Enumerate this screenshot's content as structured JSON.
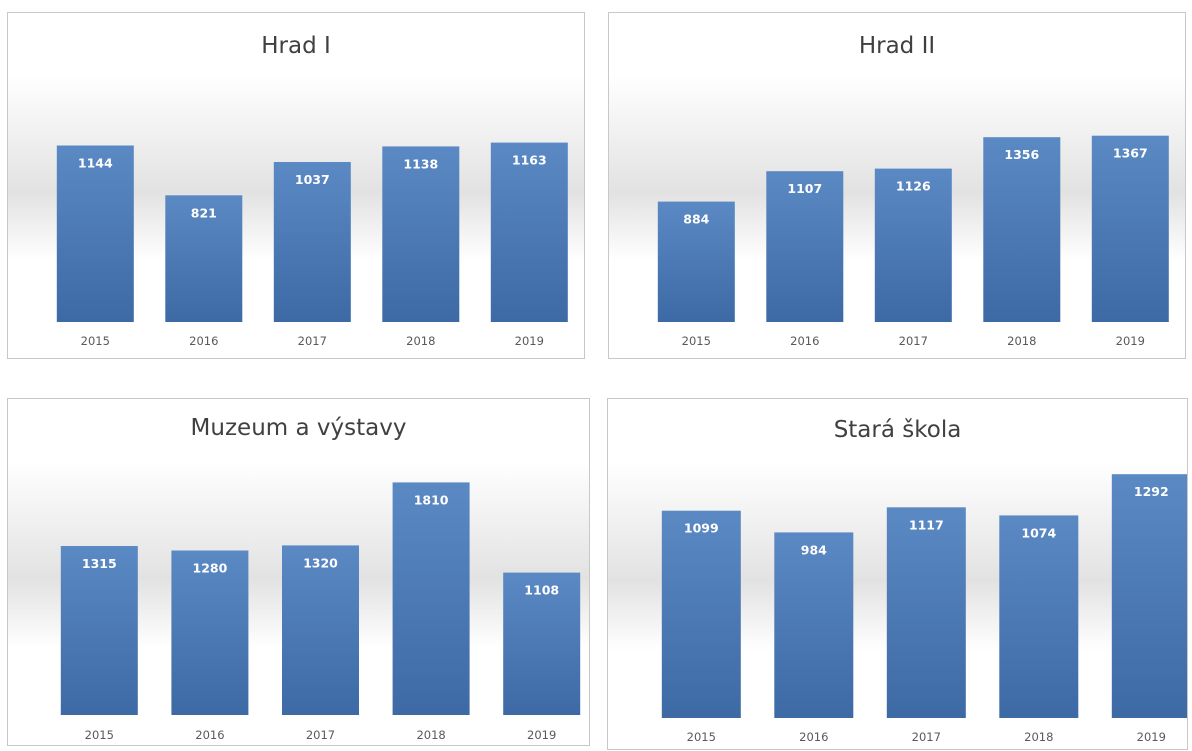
{
  "colors": {
    "bar_top": "#5b89c4",
    "bar_bottom": "#3d6aa4",
    "title": "#404040",
    "tick": "#595959"
  },
  "chart_data": [
    {
      "type": "bar",
      "title": "Hrad I",
      "xlabel": "",
      "ylabel": "",
      "ylim": [
        0,
        1400
      ],
      "grid": false,
      "legend": "none",
      "categories": [
        "2015",
        "2016",
        "2017",
        "2018",
        "2019"
      ],
      "values": [
        1144,
        821,
        1037,
        1138,
        1163
      ]
    },
    {
      "type": "bar",
      "title": "Hrad II",
      "xlabel": "",
      "ylabel": "",
      "ylim": [
        0,
        1600
      ],
      "grid": false,
      "legend": "none",
      "categories": [
        "2015",
        "2016",
        "2017",
        "2018",
        "2019"
      ],
      "values": [
        884,
        1107,
        1126,
        1356,
        1367
      ]
    },
    {
      "type": "bar",
      "title": "Muzeum a výstavy",
      "xlabel": "",
      "ylabel": "",
      "ylim": [
        0,
        2000
      ],
      "grid": false,
      "legend": "none",
      "categories": [
        "2015",
        "2016",
        "2017",
        "2018",
        "2019"
      ],
      "values": [
        1315,
        1280,
        1320,
        1810,
        1108
      ]
    },
    {
      "type": "bar",
      "title": "Stará škola",
      "xlabel": "",
      "ylabel": "",
      "ylim": [
        0,
        1500
      ],
      "grid": false,
      "legend": "none",
      "categories": [
        "2015",
        "2016",
        "2017",
        "2018",
        "2019"
      ],
      "values": [
        1099,
        984,
        1117,
        1074,
        1292
      ]
    }
  ]
}
